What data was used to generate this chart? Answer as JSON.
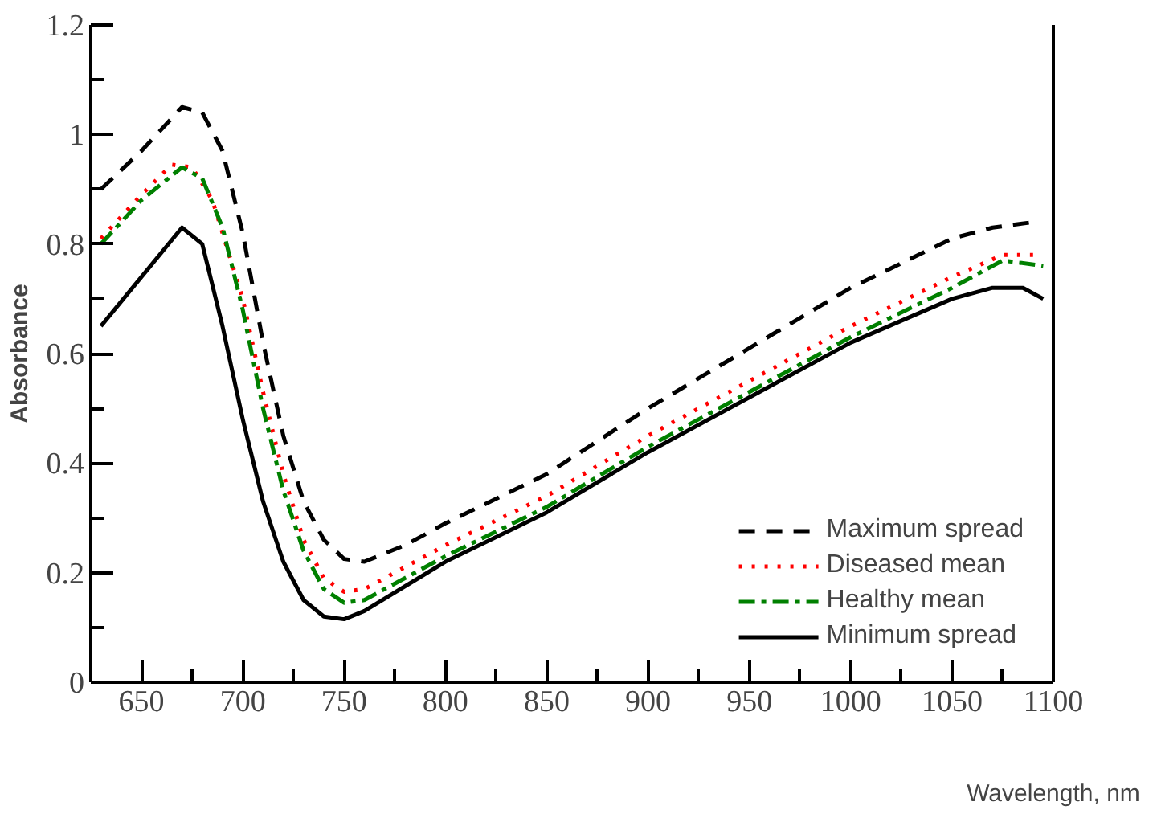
{
  "chart_data": {
    "type": "line",
    "xlabel": "Wavelength, nm",
    "ylabel": "Absorbance",
    "xlim": [
      625,
      1100
    ],
    "ylim": [
      0,
      1.2
    ],
    "xticks": [
      {
        "value": 625,
        "label": null
      },
      650,
      {
        "value": 675,
        "label": null
      },
      700,
      {
        "value": 725,
        "label": null
      },
      750,
      {
        "value": 775,
        "label": null
      },
      800,
      {
        "value": 825,
        "label": null
      },
      850,
      {
        "value": 875,
        "label": null
      },
      900,
      {
        "value": 925,
        "label": null
      },
      950,
      {
        "value": 975,
        "label": null
      },
      1000,
      {
        "value": 1025,
        "label": null
      },
      1050,
      {
        "value": 1075,
        "label": null
      },
      1100
    ],
    "yticks": [
      0,
      {
        "value": 0.1,
        "label": null
      },
      0.2,
      {
        "value": 0.3,
        "label": null
      },
      0.4,
      {
        "value": 0.5,
        "label": null
      },
      0.6,
      {
        "value": 0.7,
        "label": null
      },
      0.8,
      {
        "value": 0.9,
        "label": null
      },
      1,
      {
        "value": 1.1,
        "label": null
      },
      1.2
    ],
    "grid": false,
    "legend": "bottom right",
    "marker": "none",
    "series": [
      {
        "name": "Maximum spread",
        "color": "#000000",
        "line_style": "dashed",
        "x": [
          630,
          650,
          670,
          680,
          690,
          700,
          710,
          720,
          730,
          740,
          750,
          760,
          780,
          800,
          850,
          900,
          950,
          1000,
          1050,
          1070,
          1090
        ],
        "values": [
          0.9,
          0.97,
          1.05,
          1.04,
          0.97,
          0.82,
          0.62,
          0.45,
          0.33,
          0.26,
          0.225,
          0.22,
          0.25,
          0.29,
          0.38,
          0.5,
          0.61,
          0.72,
          0.81,
          0.83,
          0.84
        ]
      },
      {
        "name": "Diseased mean",
        "color": "#ff0000",
        "line_style": "dotted",
        "x": [
          630,
          650,
          665,
          675,
          685,
          700,
          710,
          720,
          730,
          740,
          750,
          760,
          800,
          850,
          900,
          950,
          1000,
          1050,
          1075,
          1090
        ],
        "values": [
          0.81,
          0.89,
          0.945,
          0.94,
          0.88,
          0.7,
          0.53,
          0.38,
          0.26,
          0.19,
          0.165,
          0.17,
          0.25,
          0.34,
          0.45,
          0.55,
          0.65,
          0.74,
          0.78,
          0.78
        ]
      },
      {
        "name": "Healthy mean",
        "color": "#008000",
        "line_style": "dashdot",
        "x": [
          630,
          650,
          670,
          680,
          690,
          700,
          710,
          720,
          730,
          740,
          750,
          760,
          800,
          850,
          900,
          950,
          1000,
          1050,
          1075,
          1095
        ],
        "values": [
          0.8,
          0.88,
          0.94,
          0.92,
          0.83,
          0.68,
          0.5,
          0.35,
          0.24,
          0.17,
          0.145,
          0.15,
          0.23,
          0.32,
          0.43,
          0.53,
          0.63,
          0.72,
          0.77,
          0.76
        ]
      },
      {
        "name": "Minimum spread",
        "color": "#000000",
        "line_style": "solid",
        "x": [
          630,
          650,
          670,
          680,
          690,
          700,
          710,
          720,
          730,
          740,
          750,
          760,
          800,
          850,
          900,
          950,
          1000,
          1050,
          1070,
          1085,
          1095
        ],
        "values": [
          0.65,
          0.74,
          0.83,
          0.8,
          0.65,
          0.48,
          0.33,
          0.22,
          0.15,
          0.12,
          0.115,
          0.13,
          0.22,
          0.31,
          0.42,
          0.52,
          0.62,
          0.7,
          0.72,
          0.72,
          0.7
        ]
      }
    ]
  }
}
